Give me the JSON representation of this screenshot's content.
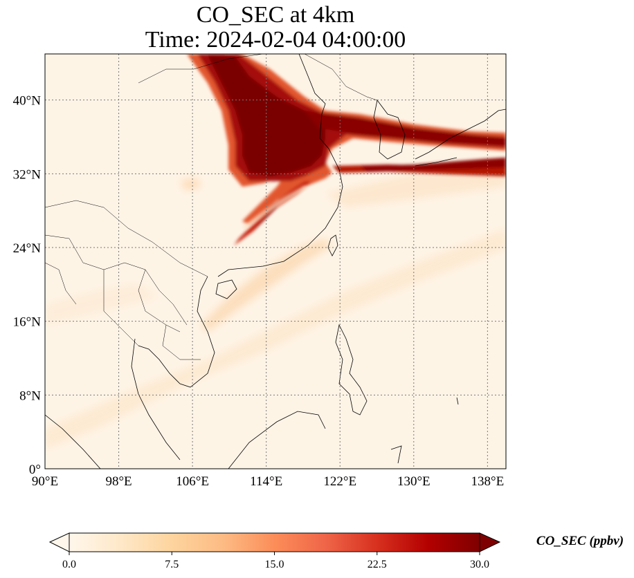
{
  "figure": {
    "title_line1": "CO_SEC at 4km",
    "title_line2": "Time: 2024-02-04 04:00:00"
  },
  "map": {
    "projection": "PlateCarree",
    "lon_range": [
      90,
      140
    ],
    "lat_range": [
      0,
      45
    ],
    "gridlines": "dotted grey",
    "lon_ticks": [
      {
        "value": 90,
        "label": "90°E"
      },
      {
        "value": 98,
        "label": "98°E"
      },
      {
        "value": 106,
        "label": "106°E"
      },
      {
        "value": 114,
        "label": "114°E"
      },
      {
        "value": 122,
        "label": "122°E"
      },
      {
        "value": 130,
        "label": "130°E"
      },
      {
        "value": 138,
        "label": "138°E"
      }
    ],
    "lat_ticks": [
      {
        "value": 0,
        "label": "0°"
      },
      {
        "value": 8,
        "label": "8°N"
      },
      {
        "value": 16,
        "label": "16°N"
      },
      {
        "value": 24,
        "label": "24°N"
      },
      {
        "value": 32,
        "label": "32°N"
      },
      {
        "value": 40,
        "label": "40°N"
      }
    ],
    "field": "CO_SEC",
    "features": [
      "Dense dark-red plume over North China Plain (~111-121°E, 33-45°N)",
      "Band extending east-northeast across Korea and Japan (~120-140°E, 33-38°N)",
      "Narrow filament south-west toward ~112°E, 25°N",
      "Faint plume off south China coast toward Hainan"
    ]
  },
  "colorbar": {
    "label": "CO_SEC (ppbv)",
    "cmap": "OrRd",
    "min": 0.0,
    "max": 30.0,
    "extend": "both",
    "ticks": [
      "0.0",
      "7.5",
      "15.0",
      "22.5",
      "30.0"
    ],
    "tick_values": [
      0.0,
      7.5,
      15.0,
      22.5,
      30.0
    ],
    "colors": [
      "#fff7ec",
      "#fee8c8",
      "#fdd49e",
      "#fdbb84",
      "#fc8d59",
      "#ef6548",
      "#d7301f",
      "#b30000",
      "#7f0000"
    ]
  }
}
